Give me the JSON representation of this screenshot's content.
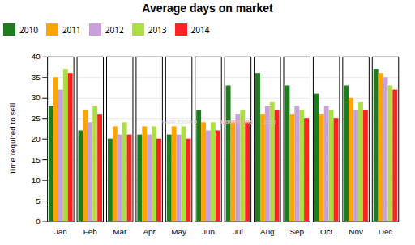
{
  "chart_data": {
    "type": "bar",
    "title": "Average days on market",
    "ylabel": "Time required to sell",
    "categories": [
      "Jan",
      "Feb",
      "Mar",
      "Apr",
      "May",
      "Jun",
      "Jul",
      "Aug",
      "Sep",
      "Oct",
      "Nov",
      "Dec"
    ],
    "series": [
      {
        "name": "2010",
        "color": "#1e7b1e",
        "values": [
          28,
          22,
          20,
          21,
          21,
          27,
          33,
          36,
          33,
          31,
          33,
          37
        ]
      },
      {
        "name": "2011",
        "color": "#ffa500",
        "values": [
          35,
          27,
          23,
          23,
          23,
          24,
          24,
          26,
          26,
          26,
          30,
          36
        ]
      },
      {
        "name": "2012",
        "color": "#c9a0dc",
        "values": [
          32,
          24,
          21,
          21,
          21,
          22,
          26,
          28,
          28,
          28,
          27,
          35
        ]
      },
      {
        "name": "2013",
        "color": "#adde44",
        "values": [
          37,
          28,
          24,
          23,
          23,
          24,
          27,
          29,
          27,
          27,
          29,
          33
        ]
      },
      {
        "name": "2014",
        "color": "#ff2222",
        "values": [
          36,
          26,
          21,
          20,
          20,
          22,
          24,
          27,
          25,
          25,
          27,
          32
        ]
      }
    ],
    "ylim": [
      0,
      40
    ],
    "yticks": [
      0,
      5,
      10,
      15,
      20,
      25,
      30,
      35,
      40
    ],
    "grid": true,
    "legend": "top",
    "annotations": [
      "www.toronto",
      "transitions",
      ".com"
    ]
  }
}
